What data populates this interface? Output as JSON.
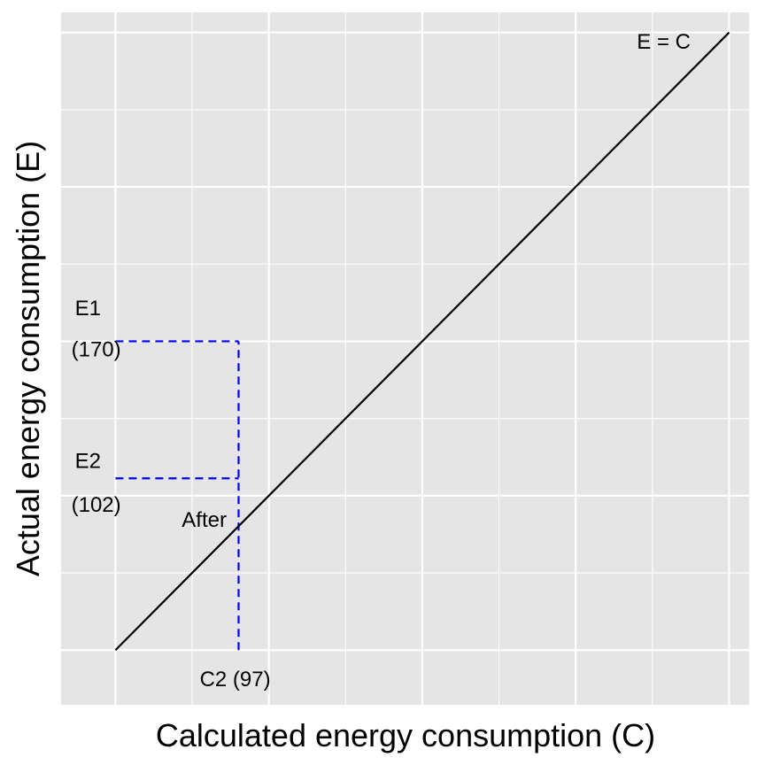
{
  "chart_data": {
    "type": "line",
    "xlabel": "Calculated energy consumption (C)",
    "ylabel": "Actual energy consumption (E)",
    "xlim": [
      0,
      100
    ],
    "ylim": [
      0,
      100
    ],
    "grid": true,
    "legend": "none",
    "colors": {
      "panel": "#e5e5e5",
      "grid": "#ffffff",
      "identity_line": "#000000",
      "guide_lines": "#0000ff"
    },
    "series": [
      {
        "type": "line",
        "x": [
          7.9,
          97.1
        ],
        "y": [
          7.9,
          97.1
        ]
      }
    ],
    "guides": {
      "c2_x": 25.8,
      "e1_y": 52.5,
      "e2_y": 32.7,
      "x_start": 7.9
    },
    "annotations": [
      {
        "id": "identity",
        "text": "E = C",
        "x": 87.6,
        "y": 95.6
      },
      {
        "id": "e1-label",
        "text": "E1",
        "x": 3.9,
        "y": 57.1
      },
      {
        "id": "e1-value",
        "text": "(170)",
        "x": 5.1,
        "y": 51.1
      },
      {
        "id": "e2-label",
        "text": "E2",
        "x": 3.9,
        "y": 35.0
      },
      {
        "id": "e2-value",
        "text": "(102)",
        "x": 5.1,
        "y": 28.7
      },
      {
        "id": "after",
        "text": "After",
        "x": 20.8,
        "y": 26.5
      },
      {
        "id": "c2",
        "text": "C2 (97)",
        "x": 25.3,
        "y": 3.5
      }
    ]
  }
}
